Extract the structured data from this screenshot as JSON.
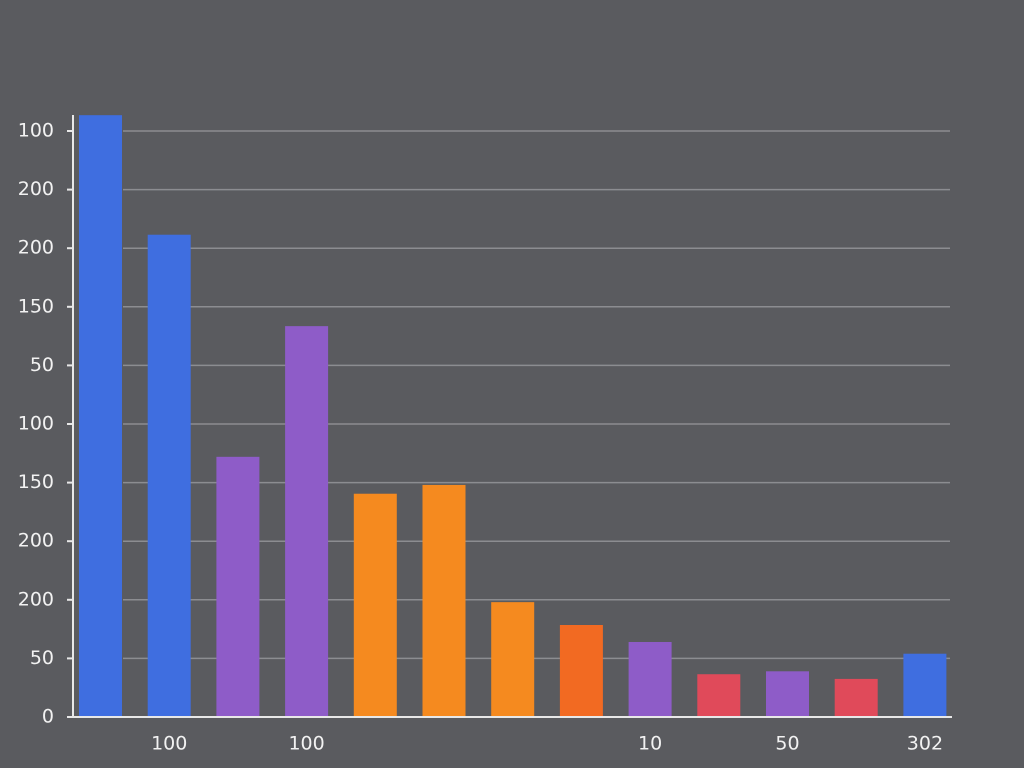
{
  "chart_data": {
    "type": "bar",
    "categories": [
      null,
      "100",
      null,
      "100",
      null,
      null,
      null,
      null,
      "10",
      null,
      "50",
      null,
      "302"
    ],
    "values": [
      10.27,
      8.23,
      4.44,
      6.67,
      3.81,
      3.96,
      1.96,
      1.57,
      1.28,
      0.73,
      0.78,
      0.65,
      1.08
    ],
    "colors": [
      "#3f6ee0",
      "#3f6ee0",
      "#8e5cc8",
      "#8e5cc8",
      "#f58a1f",
      "#f58a1f",
      "#f58a1f",
      "#f26a22",
      "#8e5cc8",
      "#e04a5a",
      "#8e5cc8",
      "#e04a5a",
      "#3f6ee0"
    ],
    "ylim": [
      0,
      10.5
    ],
    "yticks": [
      0,
      {
        "value": 1,
        "label": "50"
      },
      {
        "value": 2,
        "label": "200"
      },
      {
        "value": 3,
        "label": "200"
      },
      {
        "value": 4,
        "label": "150"
      },
      {
        "value": 5,
        "label": "100"
      },
      {
        "value": 6,
        "label": "50"
      },
      {
        "value": 7,
        "label": "150"
      },
      {
        "value": 8,
        "label": "200"
      },
      {
        "value": 9,
        "label": "200"
      },
      {
        "value": 10,
        "label": "100"
      }
    ],
    "grid": true
  }
}
